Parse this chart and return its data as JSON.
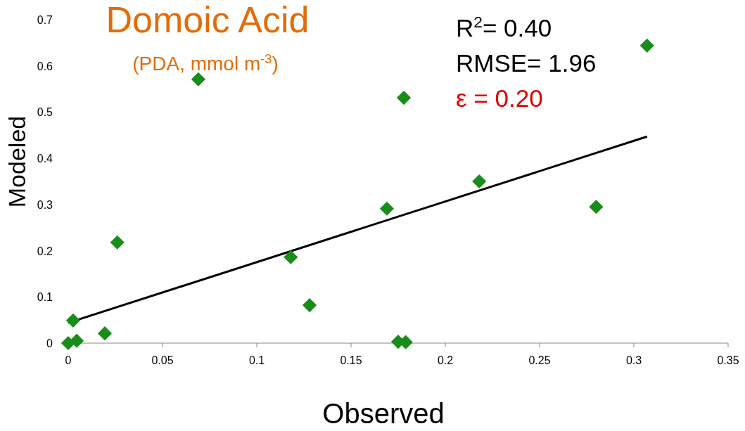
{
  "chart_data": {
    "type": "scatter",
    "title": "Domoic Acid",
    "subtitle": "(PDA, mmol m$^{-3}$)",
    "xlabel": "Observed",
    "ylabel": "Modeled",
    "annotations": [
      "R$^{2}$= 0.40",
      "RMSE= 1.96",
      "ε = 0.20"
    ],
    "xlim": [
      0,
      0.35
    ],
    "xticks": [
      0,
      0.05,
      0.1,
      0.15,
      0.2,
      0.25,
      0.3,
      0.35
    ],
    "ylim": [
      0,
      0.7
    ],
    "yticks": [
      0,
      0.1,
      0.2,
      0.3,
      0.4,
      0.5,
      0.6,
      0.7
    ],
    "marker": "diamond",
    "series": [
      {
        "color": "#1a8c1a",
        "x": [
          0,
          0.0026,
          0.0045,
          0.0194,
          0.026,
          0.069,
          0.118,
          0.128,
          0.169,
          0.175,
          0.179,
          0.178,
          0.218,
          0.28,
          0.307
        ],
        "values": [
          0,
          0.049,
          0.005,
          0.021,
          0.218,
          0.571,
          0.186,
          0.082,
          0.291,
          0.003,
          0.002,
          0.531,
          0.35,
          0.295,
          0.644
        ]
      },
      {
        "type": "line",
        "color": "#000000",
        "marker": "none",
        "line_style": "solid",
        "x": [
          0,
          0.307
        ],
        "values": [
          0.044,
          0.447
        ]
      }
    ]
  }
}
